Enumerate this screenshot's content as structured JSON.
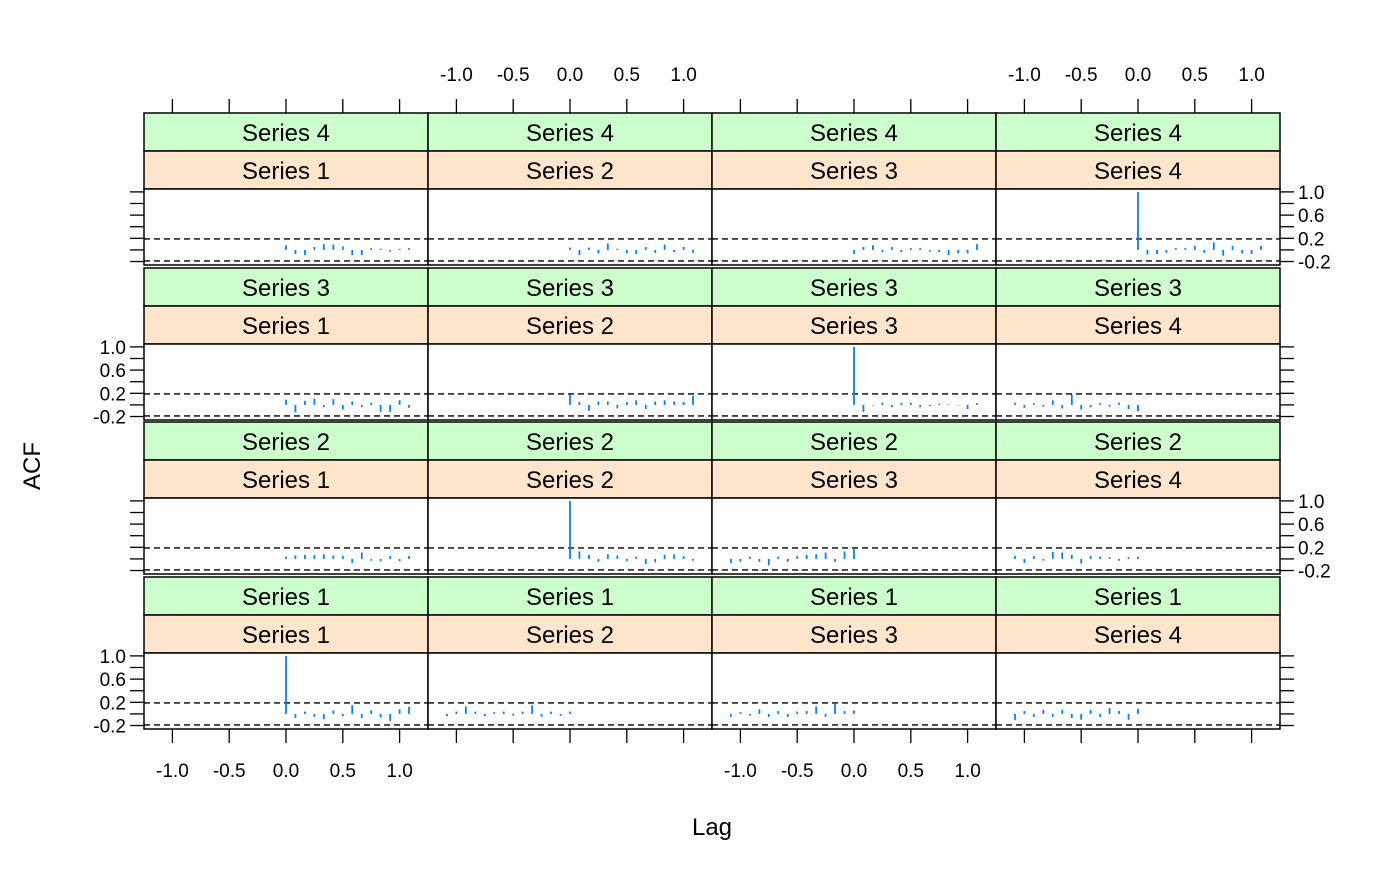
{
  "chart_data": {
    "type": "bar",
    "xlabel": "Lag",
    "ylabel": "ACF",
    "xlim": [
      -1.25,
      1.25
    ],
    "ylim": [
      -0.26,
      1.05
    ],
    "x_ticks": [
      -1.0,
      -0.5,
      0.0,
      0.5,
      1.0
    ],
    "x_tick_labels": [
      "-1.0",
      "-0.5",
      "0.0",
      "0.5",
      "1.0"
    ],
    "y_ticks": [
      -0.2,
      0.2,
      0.6,
      1.0
    ],
    "y_tick_labels": [
      "-0.2",
      "0.2",
      "0.6",
      "1.0"
    ],
    "y_minor_ticks": [
      -0.2,
      0.0,
      0.2,
      0.4,
      0.6,
      0.8,
      1.0
    ],
    "confidence_band": [
      -0.19,
      0.19
    ],
    "grid": false,
    "legend": "none",
    "colors": {
      "spike": "#0080ff",
      "outer_strip": "#ccffcc",
      "inner_strip": "#ffe5cc",
      "band_line": "#000000"
    },
    "panels": [
      {
        "row": 4,
        "col": 1,
        "outer": "Series 4",
        "inner": "Series 1",
        "x": [
          0.0,
          0.083,
          0.167,
          0.25,
          0.333,
          0.417,
          0.5,
          0.583,
          0.667,
          0.75,
          0.833,
          0.917,
          1.0,
          1.083
        ],
        "acf": [
          0.08,
          -0.07,
          -0.09,
          0.05,
          0.1,
          0.09,
          0.06,
          -0.09,
          -0.09,
          0.03,
          0.02,
          -0.03,
          0.02,
          0.03
        ]
      },
      {
        "row": 4,
        "col": 2,
        "outer": "Series 4",
        "inner": "Series 2",
        "x": [
          0.0,
          0.083,
          0.167,
          0.25,
          0.333,
          0.417,
          0.5,
          0.583,
          0.667,
          0.75,
          0.833,
          0.917,
          1.0,
          1.083
        ],
        "acf": [
          0.04,
          -0.09,
          0.04,
          -0.06,
          0.11,
          0.02,
          -0.06,
          -0.07,
          0.05,
          -0.05,
          0.09,
          -0.04,
          0.05,
          -0.05
        ]
      },
      {
        "row": 4,
        "col": 3,
        "outer": "Series 4",
        "inner": "Series 3",
        "x": [
          0.0,
          0.083,
          0.167,
          0.25,
          0.333,
          0.417,
          0.5,
          0.583,
          0.667,
          0.75,
          0.833,
          0.917,
          1.0,
          1.083
        ],
        "acf": [
          -0.07,
          0.05,
          0.08,
          -0.04,
          0.05,
          -0.04,
          0.03,
          0.03,
          -0.03,
          -0.04,
          -0.09,
          -0.06,
          -0.06,
          0.1
        ]
      },
      {
        "row": 4,
        "col": 4,
        "outer": "Series 4",
        "inner": "Series 4",
        "x": [
          0.0,
          0.083,
          0.167,
          0.25,
          0.333,
          0.417,
          0.5,
          0.583,
          0.667,
          0.75,
          0.833,
          0.917,
          1.0,
          1.083
        ],
        "acf": [
          1.0,
          -0.08,
          -0.07,
          -0.05,
          0.03,
          0.03,
          0.07,
          -0.05,
          0.13,
          -0.1,
          0.07,
          -0.06,
          -0.07,
          0.07
        ]
      },
      {
        "row": 3,
        "col": 1,
        "outer": "Series 3",
        "inner": "Series 1",
        "x": [
          0.0,
          0.083,
          0.167,
          0.25,
          0.333,
          0.417,
          0.5,
          0.583,
          0.667,
          0.75,
          0.833,
          0.917,
          1.0,
          1.083
        ],
        "acf": [
          0.09,
          -0.13,
          0.07,
          0.11,
          -0.04,
          0.1,
          -0.08,
          0.06,
          -0.04,
          0.04,
          -0.12,
          -0.12,
          0.08,
          -0.05
        ]
      },
      {
        "row": 3,
        "col": 2,
        "outer": "Series 3",
        "inner": "Series 2",
        "x": [
          0.0,
          0.083,
          0.167,
          0.25,
          0.333,
          0.417,
          0.5,
          0.583,
          0.667,
          0.75,
          0.833,
          0.917,
          1.0,
          1.083
        ],
        "acf": [
          0.18,
          0.05,
          -0.1,
          0.06,
          0.06,
          -0.06,
          0.05,
          0.08,
          -0.07,
          0.06,
          0.08,
          0.06,
          0.05,
          0.16
        ]
      },
      {
        "row": 3,
        "col": 3,
        "outer": "Series 3",
        "inner": "Series 3",
        "x": [
          0.0,
          0.083,
          0.167,
          0.25,
          0.333,
          0.417,
          0.5,
          0.583,
          0.667,
          0.75,
          0.833,
          0.917,
          1.0,
          1.083
        ],
        "acf": [
          1.0,
          -0.12,
          -0.01,
          0.04,
          -0.04,
          0.04,
          0.04,
          -0.04,
          -0.02,
          0.02,
          0.01,
          -0.01,
          -0.07,
          0.03
        ]
      },
      {
        "row": 3,
        "col": 4,
        "outer": "Series 3",
        "inner": "Series 4",
        "x": [
          -1.083,
          -1.0,
          -0.917,
          -0.833,
          -0.75,
          -0.667,
          -0.583,
          -0.5,
          -0.417,
          -0.333,
          -0.25,
          -0.167,
          -0.083,
          0.0
        ],
        "acf": [
          0.04,
          -0.05,
          0.03,
          -0.03,
          0.08,
          -0.06,
          0.18,
          -0.08,
          -0.04,
          0.03,
          -0.03,
          0.04,
          -0.07,
          -0.11
        ]
      },
      {
        "row": 2,
        "col": 1,
        "outer": "Series 2",
        "inner": "Series 1",
        "x": [
          0.0,
          0.083,
          0.167,
          0.25,
          0.333,
          0.417,
          0.5,
          0.583,
          0.667,
          0.75,
          0.833,
          0.917,
          1.0,
          1.083
        ],
        "acf": [
          0.04,
          0.06,
          0.07,
          0.07,
          0.08,
          0.06,
          0.05,
          -0.07,
          0.11,
          -0.03,
          -0.04,
          0.05,
          -0.04,
          0.05
        ]
      },
      {
        "row": 2,
        "col": 2,
        "outer": "Series 2",
        "inner": "Series 2",
        "x": [
          0.0,
          0.083,
          0.167,
          0.25,
          0.333,
          0.417,
          0.5,
          0.583,
          0.667,
          0.75,
          0.833,
          0.917,
          1.0,
          1.083
        ],
        "acf": [
          1.0,
          0.13,
          0.07,
          -0.05,
          0.08,
          0.06,
          -0.04,
          0.04,
          -0.09,
          -0.06,
          0.07,
          0.08,
          0.05,
          -0.03
        ]
      },
      {
        "row": 2,
        "col": 3,
        "outer": "Series 2",
        "inner": "Series 3",
        "x": [
          -1.083,
          -1.0,
          -0.917,
          -0.833,
          -0.75,
          -0.667,
          -0.583,
          -0.5,
          -0.417,
          -0.333,
          -0.25,
          -0.167,
          -0.083,
          0.0
        ],
        "acf": [
          -0.07,
          -0.05,
          0.04,
          -0.05,
          -0.11,
          0.04,
          -0.05,
          0.05,
          0.07,
          0.08,
          0.11,
          -0.05,
          0.13,
          0.17
        ]
      },
      {
        "row": 2,
        "col": 4,
        "outer": "Series 2",
        "inner": "Series 4",
        "x": [
          -1.083,
          -1.0,
          -0.917,
          -0.833,
          -0.75,
          -0.667,
          -0.583,
          -0.5,
          -0.417,
          -0.333,
          -0.25,
          -0.167,
          -0.083,
          0.0
        ],
        "acf": [
          0.05,
          -0.07,
          0.05,
          -0.03,
          0.12,
          0.11,
          0.07,
          -0.08,
          0.05,
          0.04,
          0.03,
          -0.03,
          0.03,
          0.04
        ]
      },
      {
        "row": 1,
        "col": 1,
        "outer": "Series 1",
        "inner": "Series 1",
        "x": [
          0.0,
          0.083,
          0.167,
          0.25,
          0.333,
          0.417,
          0.5,
          0.583,
          0.667,
          0.75,
          0.833,
          0.917,
          1.0,
          1.083
        ],
        "acf": [
          1.0,
          -0.07,
          0.04,
          -0.05,
          -0.09,
          0.06,
          -0.04,
          0.15,
          -0.07,
          0.06,
          -0.06,
          -0.12,
          0.08,
          0.12
        ]
      },
      {
        "row": 1,
        "col": 2,
        "outer": "Series 1",
        "inner": "Series 2",
        "x": [
          -1.083,
          -1.0,
          -0.917,
          -0.833,
          -0.75,
          -0.667,
          -0.583,
          -0.5,
          -0.417,
          -0.333,
          -0.25,
          -0.167,
          -0.083,
          0.0
        ],
        "acf": [
          -0.04,
          0.04,
          0.13,
          0.04,
          -0.04,
          0.03,
          0.04,
          -0.03,
          0.04,
          0.15,
          -0.05,
          0.04,
          -0.03,
          0.04
        ]
      },
      {
        "row": 1,
        "col": 3,
        "outer": "Series 1",
        "inner": "Series 3",
        "x": [
          -1.083,
          -1.0,
          -0.917,
          -0.833,
          -0.75,
          -0.667,
          -0.583,
          -0.5,
          -0.417,
          -0.333,
          -0.25,
          -0.167,
          -0.083,
          0.0
        ],
        "acf": [
          -0.05,
          0.03,
          -0.03,
          0.08,
          -0.05,
          0.05,
          -0.05,
          0.04,
          0.05,
          0.13,
          -0.05,
          0.17,
          0.05,
          0.06
        ]
      },
      {
        "row": 1,
        "col": 4,
        "outer": "Series 1",
        "inner": "Series 4",
        "x": [
          -1.083,
          -1.0,
          -0.917,
          -0.833,
          -0.75,
          -0.667,
          -0.583,
          -0.5,
          -0.417,
          -0.333,
          -0.25,
          -0.167,
          -0.083,
          0.0
        ],
        "acf": [
          -0.11,
          0.05,
          -0.05,
          0.07,
          -0.05,
          0.07,
          -0.07,
          -0.1,
          0.07,
          -0.05,
          0.1,
          0.05,
          -0.1,
          0.09
        ]
      }
    ]
  }
}
